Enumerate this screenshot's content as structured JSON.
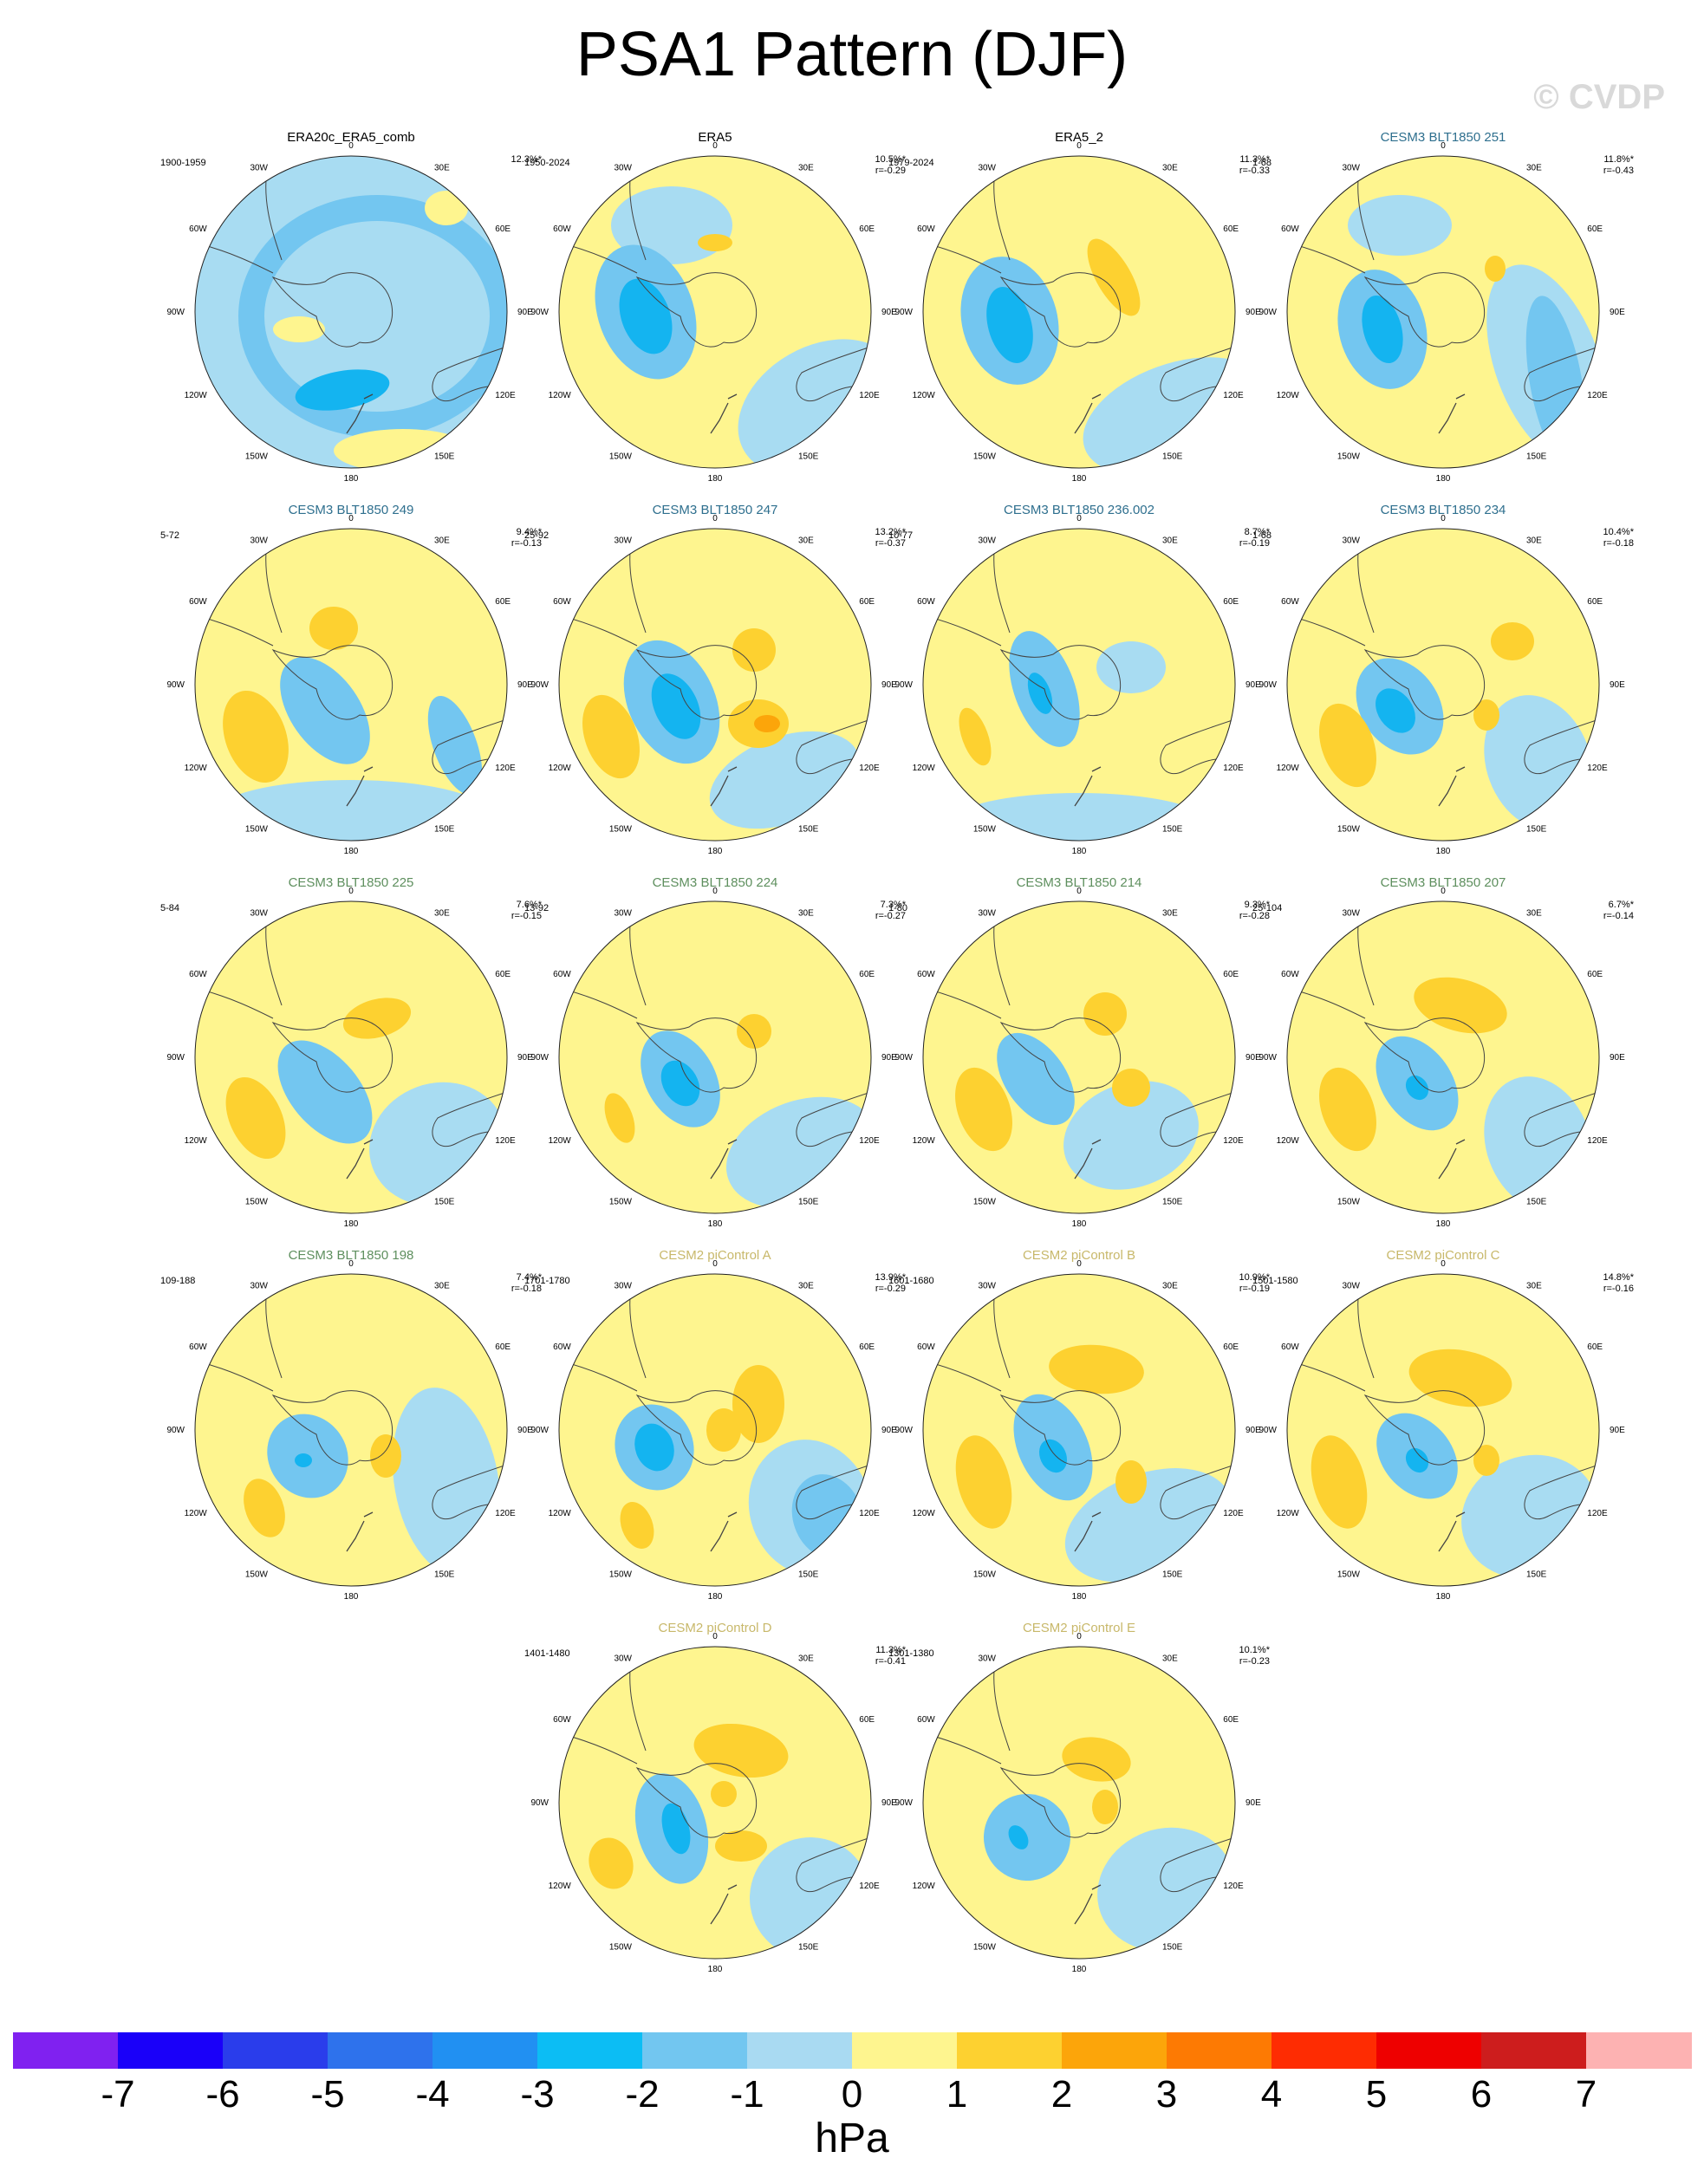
{
  "title": "PSA1 Pattern (DJF)",
  "watermark": "© CVDP",
  "map_labels": [
    "0",
    "30E",
    "60E",
    "90E",
    "120E",
    "150E",
    "180",
    "150W",
    "120W",
    "90W",
    "60W",
    "30W"
  ],
  "colors": {
    "title_black": "#000000",
    "title_teal": "#2e6f8e",
    "title_green": "#5e8f5e",
    "title_yellow": "#c8b86a",
    "ocean_light_blue": "#a8dcf2",
    "pos1": "#fef58f",
    "pos2": "#fdd130",
    "pos3": "#fca50a",
    "neg2": "#73c6f0",
    "neg3": "#14b4f0",
    "neg4": "#2d8ded"
  },
  "panels": [
    {
      "title": "ERA20c_ERA5_comb",
      "title_color": "title_black",
      "period": "1900-1959",
      "pct": "12.3%*",
      "r": ""
    },
    {
      "title": "ERA5",
      "title_color": "title_black",
      "period": "1950-2024",
      "pct": "10.5%*",
      "r": "r=-0.29"
    },
    {
      "title": "ERA5_2",
      "title_color": "title_black",
      "period": "1979-2024",
      "pct": "11.3%*",
      "r": "r=-0.33"
    },
    {
      "title": "CESM3 BLT1850 251",
      "title_color": "title_teal",
      "period": "1-68",
      "pct": "11.8%*",
      "r": "r=-0.43"
    },
    {
      "title": "CESM3 BLT1850 249",
      "title_color": "title_teal",
      "period": "5-72",
      "pct": "9.4%*",
      "r": "r=-0.13"
    },
    {
      "title": "CESM3 BLT1850 247",
      "title_color": "title_teal",
      "period": "25-92",
      "pct": "13.2%*",
      "r": "r=-0.37"
    },
    {
      "title": "CESM3 BLT1850 236.002",
      "title_color": "title_teal",
      "period": "10-77",
      "pct": "8.7%*",
      "r": "r=-0.19"
    },
    {
      "title": "CESM3 BLT1850 234",
      "title_color": "title_teal",
      "period": "1-68",
      "pct": "10.4%*",
      "r": "r=-0.18"
    },
    {
      "title": "CESM3 BLT1850 225",
      "title_color": "title_green",
      "period": "5-84",
      "pct": "7.6%*",
      "r": "r=-0.15"
    },
    {
      "title": "CESM3 BLT1850 224",
      "title_color": "title_green",
      "period": "13-92",
      "pct": "7.3%*",
      "r": "r=-0.27"
    },
    {
      "title": "CESM3 BLT1850 214",
      "title_color": "title_green",
      "period": "1-80",
      "pct": "9.3%*",
      "r": "r=-0.28"
    },
    {
      "title": "CESM3 BLT1850 207",
      "title_color": "title_green",
      "period": "25-104",
      "pct": "6.7%*",
      "r": "r=-0.14"
    },
    {
      "title": "CESM3 BLT1850 198",
      "title_color": "title_green",
      "period": "109-188",
      "pct": "7.4%*",
      "r": "r=-0.18"
    },
    {
      "title": "CESM2 piControl A",
      "title_color": "title_yellow",
      "period": "1701-1780",
      "pct": "13.9%*",
      "r": "r=-0.29"
    },
    {
      "title": "CESM2 piControl B",
      "title_color": "title_yellow",
      "period": "1601-1680",
      "pct": "10.9%*",
      "r": "r=-0.19"
    },
    {
      "title": "CESM2 piControl C",
      "title_color": "title_yellow",
      "period": "1501-1580",
      "pct": "14.8%*",
      "r": "r=-0.16"
    },
    {
      "title": "CESM2 piControl D",
      "title_color": "title_yellow",
      "period": "1401-1480",
      "pct": "11.3%*",
      "r": "r=-0.41"
    },
    {
      "title": "CESM2 piControl E",
      "title_color": "title_yellow",
      "period": "1301-1380",
      "pct": "10.1%*",
      "r": "r=-0.23"
    }
  ],
  "colorbar": {
    "colors": [
      "#8021f0",
      "#1a00f9",
      "#2a3deb",
      "#2e72ec",
      "#2190f2",
      "#0cbdf4",
      "#72c6f0",
      "#a9daf2",
      "#fef58f",
      "#fdd130",
      "#fca50a",
      "#fd7a03",
      "#fe2c02",
      "#ee0000",
      "#cd1d1d",
      "#fdb2b2"
    ],
    "labels": [
      "-7",
      "-6",
      "-5",
      "-4",
      "-3",
      "-2",
      "-1",
      "0",
      "1",
      "2",
      "3",
      "4",
      "5",
      "6",
      "7"
    ],
    "unit": "hPa"
  }
}
